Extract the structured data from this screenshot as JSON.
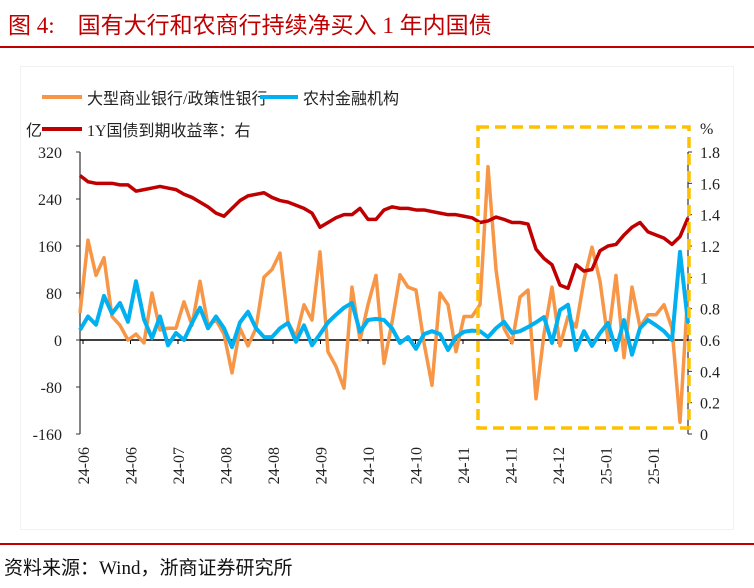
{
  "title": "图 4:    国有大行和农商行持续净买入 1 年内国债",
  "source": "资料来源：Wind，浙商证券研究所",
  "colors": {
    "title": "#c00000",
    "orange": "#f79646",
    "blue": "#00b0f0",
    "red": "#c00000",
    "highlight": "#ffc000"
  },
  "chart_data": {
    "type": "line",
    "left_unit": "亿",
    "right_unit": "%",
    "ylim_left": [
      -160,
      320
    ],
    "yticks_left": [
      "320",
      "240",
      "160",
      "80",
      "0",
      "-80",
      "-160"
    ],
    "ylim_right": [
      0,
      1.8
    ],
    "yticks_right": [
      "1.8",
      "1.6",
      "1.4",
      "1.2",
      "1",
      "0.8",
      "0.6",
      "0.4",
      "0.2",
      "0"
    ],
    "x_tick_labels": [
      "24-06",
      "24-06",
      "24-07",
      "24-08",
      "24-08",
      "24-09",
      "24-10",
      "24-10",
      "24-11",
      "24-11",
      "24-12",
      "25-01",
      "25-01"
    ],
    "grid": false,
    "legend_placement": "top",
    "highlight": "dashed box over 24-11 to end",
    "series": [
      {
        "name": "大型商业银行/政策性银行",
        "axis": "left",
        "color": "#f79646",
        "values": [
          46,
          170,
          110,
          140,
          40,
          25,
          0,
          10,
          -5,
          80,
          17,
          20,
          20,
          65,
          25,
          100,
          25,
          34,
          10,
          -56,
          20,
          -10,
          20,
          107,
          120,
          148,
          30,
          5,
          60,
          34,
          150,
          -20,
          -45,
          -82,
          90,
          0,
          60,
          110,
          -40,
          30,
          111,
          90,
          85,
          -5,
          -77,
          80,
          60,
          -20,
          40,
          40,
          60,
          295,
          120,
          20,
          -5,
          73,
          85,
          -100,
          10,
          90,
          -10,
          40,
          22,
          102,
          158,
          100,
          0,
          110,
          -30,
          90,
          22,
          43,
          43,
          60,
          20,
          -140,
          85
        ]
      },
      {
        "name": "农村金融机构",
        "axis": "left",
        "color": "#00b0f0",
        "values": [
          17,
          40,
          26,
          75,
          45,
          63,
          31,
          100,
          35,
          3,
          40,
          -9,
          12,
          0,
          29,
          55,
          20,
          40,
          20,
          -12,
          30,
          48,
          20,
          5,
          5,
          20,
          29,
          -3,
          25,
          -9,
          10,
          30,
          43,
          55,
          63,
          14,
          34,
          36,
          34,
          20,
          -5,
          5,
          -15,
          10,
          15,
          10,
          -17,
          5,
          14,
          16,
          15,
          5,
          20,
          31,
          12,
          15,
          22,
          30,
          39,
          -5,
          51,
          60,
          -17,
          15,
          -10,
          12,
          29,
          -17,
          34,
          -25,
          20,
          34,
          25,
          15,
          0,
          150,
          29
        ]
      },
      {
        "name": "1Y国债到期收益率：右",
        "axis": "right",
        "color": "#c00000",
        "values": [
          1.65,
          1.61,
          1.6,
          1.6,
          1.6,
          1.59,
          1.59,
          1.55,
          1.56,
          1.57,
          1.58,
          1.57,
          1.56,
          1.53,
          1.51,
          1.48,
          1.45,
          1.41,
          1.39,
          1.44,
          1.49,
          1.52,
          1.53,
          1.54,
          1.51,
          1.49,
          1.48,
          1.46,
          1.44,
          1.41,
          1.32,
          1.35,
          1.38,
          1.4,
          1.4,
          1.44,
          1.37,
          1.37,
          1.43,
          1.45,
          1.44,
          1.44,
          1.43,
          1.43,
          1.42,
          1.41,
          1.4,
          1.4,
          1.39,
          1.38,
          1.35,
          1.36,
          1.385,
          1.37,
          1.35,
          1.35,
          1.34,
          1.18,
          1.12,
          1.08,
          0.95,
          0.93,
          1.08,
          1.04,
          1.05,
          1.17,
          1.2,
          1.21,
          1.27,
          1.32,
          1.35,
          1.29,
          1.27,
          1.25,
          1.21,
          1.26,
          1.38
        ]
      }
    ]
  }
}
